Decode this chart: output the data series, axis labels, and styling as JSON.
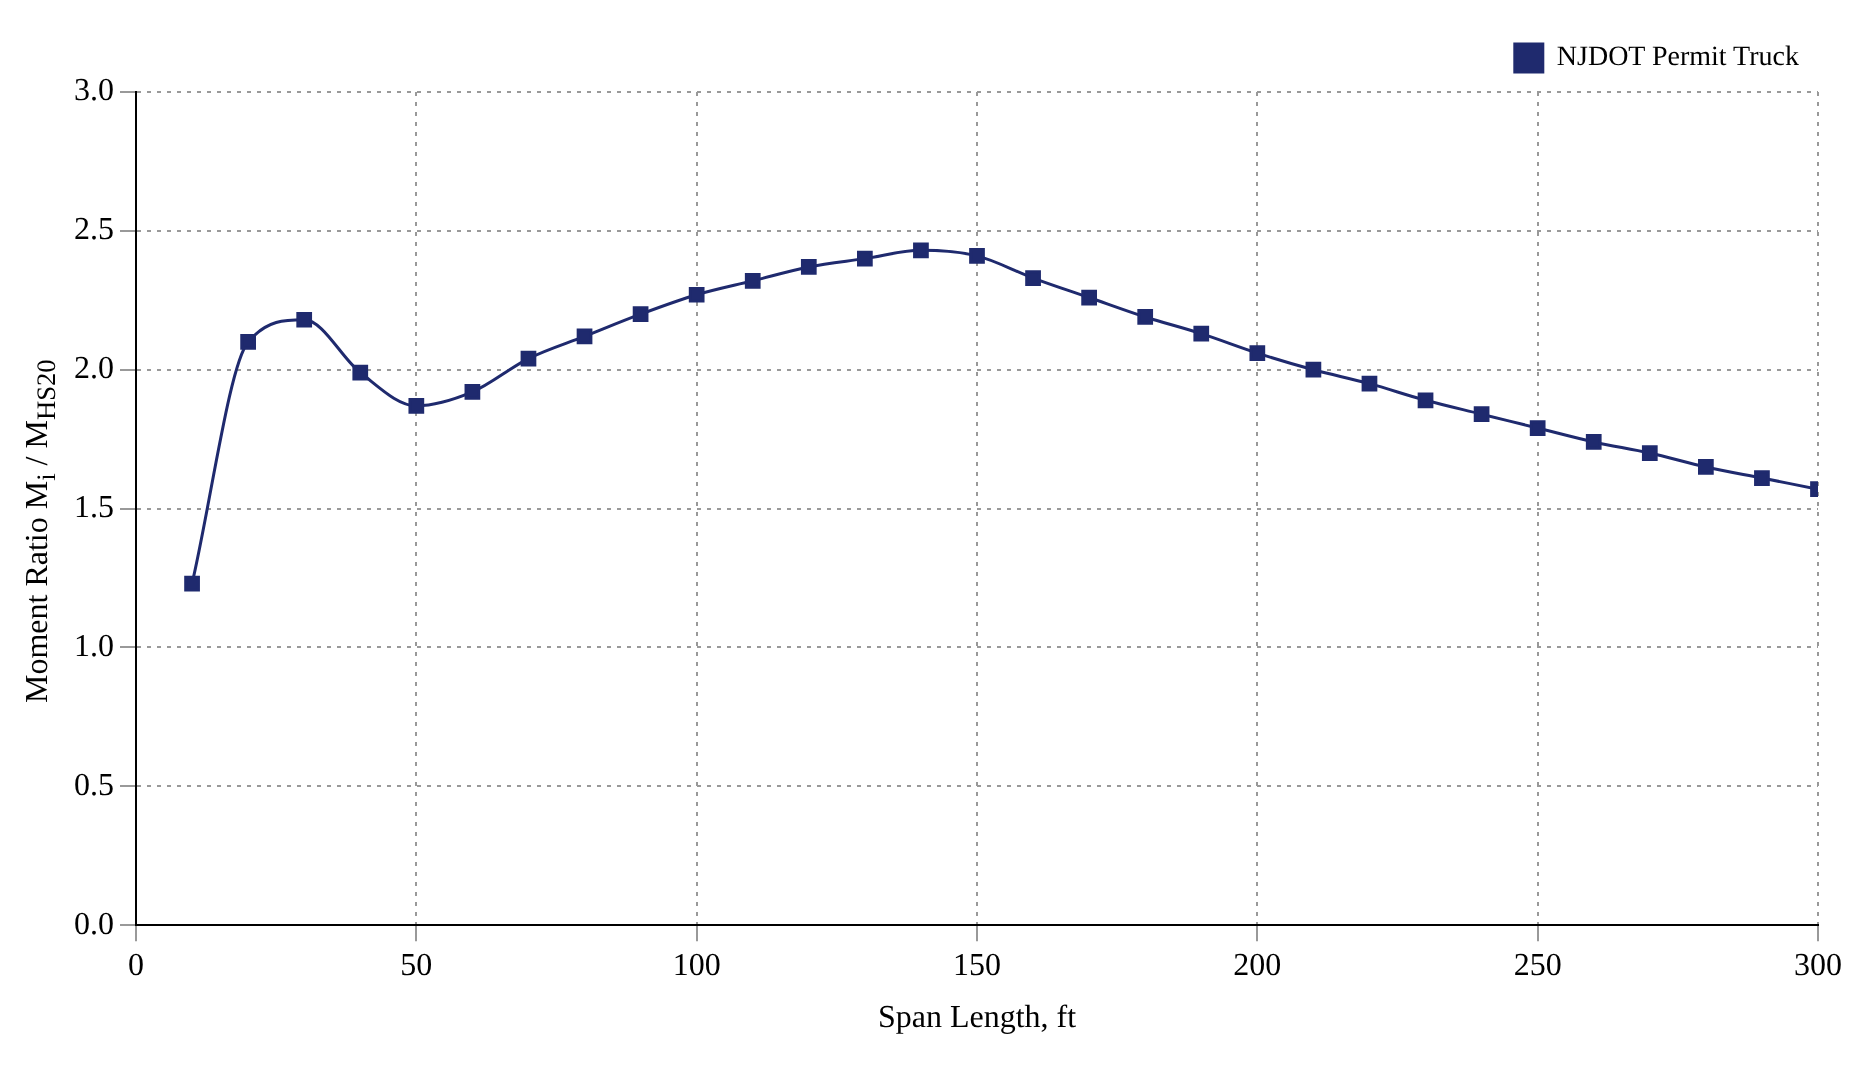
{
  "chart_data": {
    "type": "line",
    "xlabel": "Span Length, ft",
    "ylabel": "Moment Ratio M$_{i}$ / M$_{HS20}$",
    "x": [
      10,
      20,
      30,
      40,
      50,
      60,
      70,
      80,
      90,
      100,
      110,
      120,
      130,
      140,
      150,
      160,
      170,
      180,
      190,
      200,
      210,
      220,
      230,
      240,
      250,
      260,
      270,
      280,
      290,
      300
    ],
    "series": [
      {
        "name": "NJDOT Permit Truck",
        "color": "#1f2a6e",
        "values": [
          1.23,
          2.1,
          2.18,
          1.99,
          1.87,
          1.92,
          2.04,
          2.12,
          2.2,
          2.27,
          2.32,
          2.37,
          2.4,
          2.43,
          2.41,
          2.33,
          2.26,
          2.19,
          2.13,
          2.06,
          2.0,
          1.95,
          1.89,
          1.84,
          1.79,
          1.74,
          1.7,
          1.65,
          1.61,
          1.57
        ]
      }
    ],
    "xlim": [
      0,
      300
    ],
    "xticks": [
      0,
      50,
      100,
      150,
      200,
      250,
      300
    ],
    "ylim": [
      0,
      3
    ],
    "yticks": [
      {
        "value": 0,
        "label": "0.0"
      },
      {
        "value": 0.5,
        "label": "0.5"
      },
      {
        "value": 1,
        "label": "1.0"
      },
      {
        "value": 1.5,
        "label": "1.5"
      },
      {
        "value": 2,
        "label": "2.0"
      },
      {
        "value": 2.5,
        "label": "2.5"
      },
      {
        "value": 3,
        "label": "3.0"
      }
    ],
    "grid": true,
    "legend": "top right",
    "marker": "square",
    "line_style": "solid"
  }
}
